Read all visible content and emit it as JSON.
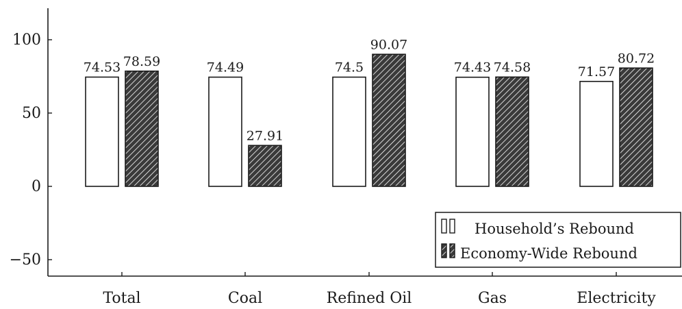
{
  "chart_data": {
    "type": "bar",
    "categories": [
      "Total",
      "Coal",
      "Refined Oil",
      "Gas",
      "Electricity"
    ],
    "series": [
      {
        "name": "Household’s Rebound",
        "values": [
          74.53,
          74.49,
          74.5,
          74.43,
          71.57
        ],
        "fill": "#ffffff",
        "pattern": "none"
      },
      {
        "name": "Economy-Wide Rebound",
        "values": [
          78.59,
          27.91,
          90.07,
          74.58,
          80.72
        ],
        "fill": "#3a3a3a",
        "pattern": "crosshatch"
      }
    ],
    "data_labels": [
      [
        "74.53",
        "74.49",
        "74.5",
        "74.43",
        "71.57"
      ],
      [
        "78.59",
        "27.91",
        "90.07",
        "74.58",
        "80.72"
      ]
    ],
    "y_ticks": [
      -50,
      0,
      50,
      100
    ],
    "y_tick_labels": [
      "−50",
      "0",
      "50",
      "100"
    ],
    "ylim": [
      -60,
      121
    ],
    "title": "",
    "xlabel": "",
    "ylabel": "",
    "grid": false,
    "legend_position": "bottom-right",
    "colors": {
      "axis": "#1a1a1a",
      "bar_stroke": "#1a1a1a",
      "hatch_bg": "#3a3a3a",
      "hatch_line": "#ffffff"
    }
  }
}
